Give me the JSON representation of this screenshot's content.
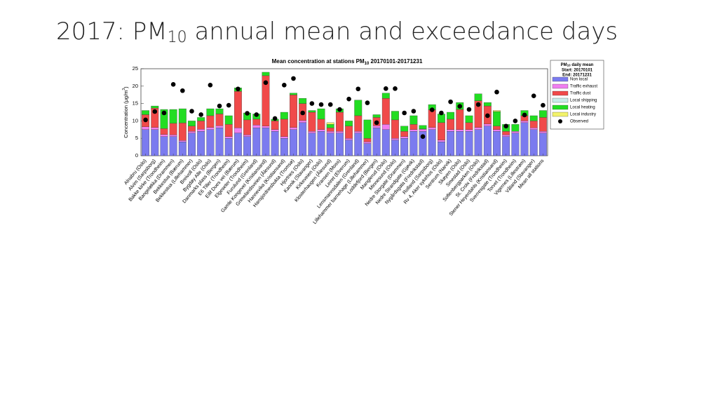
{
  "slide": {
    "title": [
      "2017: PM",
      "10",
      " annual mean and exceedance days"
    ]
  },
  "chart_data": {
    "type": "stacked-bar",
    "title": [
      "Mean concentration at stations PM",
      "10",
      " 20170101-20171231"
    ],
    "y_label": [
      "Concentration (μg/m",
      "3",
      ")"
    ],
    "legend_title": [
      "PM",
      "10",
      " daily mean"
    ],
    "legend_start": "Start: 20170101",
    "legend_end": "End: 20171231",
    "legend": "outside-right",
    "ylim": [
      0,
      25
    ],
    "yticks": [
      0,
      5,
      10,
      15,
      20,
      25
    ],
    "categories": [
      "Alnabru (Oslo)",
      "Alvim (Sarpsborg)",
      "Bakke kirke (Trondheim)",
      "Bangeløkka (Drammen)",
      "Bekkestua (Bærum)",
      "Bekkestua (Lillehammer)",
      "Breivoll (Oslo)",
      "Bygdøy Alle (Oslo)",
      "Danmarks plass (Bergen)",
      "E6 Tiller (Trondheim)",
      "Eilif Dues vei (Bærum)",
      "Elgeseter (Trondheim)",
      "Furulund (Grenland)",
      "Gamle Kongevei (Kristiansand)",
      "Grimelandsveien (Ålesund)",
      "Hannevika (Kristiansand)",
      "Hansjordnesbukta (Tromsø)",
      "Hjortnes (Oslo)",
      "Kannik (Stavanger)",
      "Kirkeveien (Oslo)",
      "Klosterhaugen (Ålesund)",
      "Kransen (Moss)",
      "Leiret (Elverum)",
      "Lensmannsdalen (Grenland)",
      "Lillehammer barnehage (Lillehammer)",
      "Loddefjord (Bergen)",
      "Manglerud (Oslo)",
      "Minnesund (Oslo)",
      "Nedre Storgate (Drammen)",
      "Nedre Strandgate (Gjøvik)",
      "Nygårdsgata (Fredrikstad)",
      "Rolland (Sarpsborg)",
      "Rv 4, Aker sykehus (Oslo)",
      "Sentrum (Narvik)",
      "Skøyen (Oslo)",
      "Smestad (Oslo)",
      "Sofienbergparken (Oslo)",
      "St. Croix (Fredrikstad)",
      "Stener Heyerdahls (Kristiansand)",
      "Sverresgate (Trondheim)",
      "Torvet (Trondheim)",
      "Vigernes (Lillestrøm)",
      "Våland (Stavanger)",
      "Mean all stations"
    ],
    "series": [
      {
        "name": "Non local",
        "color": "#7b7bef",
        "values": [
          7.5,
          7.5,
          5.5,
          5.5,
          4,
          6.5,
          7,
          7.5,
          8,
          5,
          6.5,
          5.5,
          8,
          8,
          7,
          5,
          7.5,
          9.5,
          6.5,
          7,
          6.5,
          6.5,
          4.5,
          6.5,
          3.5,
          8,
          7.5,
          4.5,
          5,
          7,
          7,
          7.5,
          4,
          7,
          7,
          7,
          7.5,
          8.5,
          7,
          5.5,
          6.5,
          9.5,
          7.5,
          6.5
        ]
      },
      {
        "name": "Traffic exhaust",
        "color": "#f07ef0",
        "values": [
          0.8,
          0.6,
          0.6,
          0.5,
          0.4,
          0.5,
          0.6,
          0.6,
          0.6,
          0.5,
          1.5,
          0.5,
          0.8,
          0.5,
          0.5,
          0.5,
          0.6,
          0.6,
          0.5,
          0.5,
          0.5,
          0.5,
          0.5,
          0.5,
          0.5,
          0.6,
          1.5,
          0.5,
          0.5,
          0.5,
          0.6,
          0.6,
          0.5,
          0.5,
          0.5,
          0.5,
          0.6,
          0.6,
          0.5,
          0.5,
          0.5,
          0.5,
          0.5,
          0.5
        ]
      },
      {
        "name": "Traffic dust",
        "color": "#f04a4a",
        "values": [
          3.5,
          5.6,
          1.7,
          3.3,
          5,
          1.5,
          2.4,
          3.4,
          3.4,
          3.5,
          10.5,
          4.3,
          1.7,
          14.5,
          2.5,
          5,
          9.4,
          4.9,
          5.5,
          3,
          1,
          5.5,
          3.5,
          4.5,
          1,
          2.4,
          7.5,
          5.3,
          1.5,
          1.5,
          0.1,
          5.1,
          5,
          3,
          5.8,
          2,
          7.7,
          5.2,
          1,
          1,
          0,
          1.5,
          2,
          4
        ]
      },
      {
        "name": "Local shipping",
        "color": "#c9ece9",
        "values": [
          0,
          0,
          0,
          0,
          0,
          0,
          0,
          0,
          0,
          0,
          0,
          0,
          0,
          0,
          0,
          0,
          0,
          0,
          0,
          0,
          0,
          0,
          0,
          0,
          0,
          0,
          0,
          0,
          0,
          0,
          0,
          0,
          0,
          0,
          0,
          0,
          0,
          0,
          0,
          0,
          0,
          0,
          0,
          0
        ]
      },
      {
        "name": "Local heating",
        "color": "#22dd22",
        "values": [
          1.2,
          0.6,
          5.5,
          4,
          4.1,
          1.5,
          1,
          2,
          1.5,
          2.5,
          1,
          2,
          1.5,
          1,
          0.5,
          2,
          0.5,
          1.5,
          0.5,
          3,
          1,
          1,
          1.5,
          4.5,
          5.3,
          0.8,
          1.5,
          2.5,
          1.5,
          2.5,
          1,
          1.5,
          2.5,
          2,
          2,
          2,
          2,
          1,
          4.2,
          2,
          2,
          1.5,
          1.5,
          2
        ]
      },
      {
        "name": "Local industry",
        "color": "#f2f26b",
        "values": [
          0,
          0,
          0,
          0,
          0,
          0,
          0,
          0,
          0,
          0,
          0,
          0,
          0,
          0,
          0,
          0,
          0,
          0,
          0,
          0,
          0.5,
          0,
          0,
          0,
          0,
          0,
          0,
          0,
          0,
          0,
          0,
          0,
          0,
          0,
          0,
          0,
          0,
          0,
          0.3,
          0,
          0,
          0,
          0,
          0
        ]
      }
    ],
    "observed": {
      "name": "Observed",
      "color": "#000000",
      "values": [
        10.3,
        12.7,
        12.3,
        20.5,
        18.7,
        12.8,
        11.8,
        20.3,
        14.3,
        14.5,
        19.2,
        12.2,
        11.8,
        21,
        10.7,
        20.3,
        22.2,
        12.3,
        15,
        14.7,
        14.7,
        13.3,
        16.3,
        19.2,
        15.2,
        9.5,
        19.3,
        19.3,
        12.3,
        12.8,
        5.5,
        13.2,
        12.3,
        15.5,
        14.2,
        13.3,
        14.7,
        11.5,
        18.3,
        8.5,
        10,
        11.7,
        17.2,
        14.5
      ]
    }
  }
}
